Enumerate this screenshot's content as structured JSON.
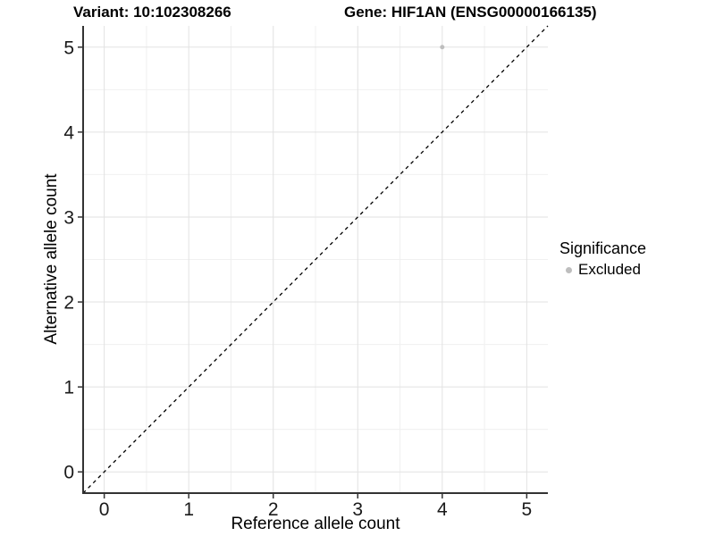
{
  "titles": {
    "variant": "Variant: 10:102308266",
    "gene": "Gene: HIF1AN (ENSG00000166135)"
  },
  "chart_data": {
    "type": "scatter",
    "xlabel": "Reference allele count",
    "ylabel": "Alternative allele count",
    "xlim": [
      -0.25,
      5.25
    ],
    "ylim": [
      -0.25,
      5.25
    ],
    "xticks": [
      0,
      1,
      2,
      3,
      4,
      5
    ],
    "yticks": [
      0,
      1,
      2,
      3,
      4,
      5
    ],
    "grid": {
      "major": true,
      "minor": true
    },
    "series": [
      {
        "name": "Excluded",
        "color": "#bebebe",
        "points": [
          {
            "x": 4,
            "y": 5
          }
        ]
      }
    ],
    "reference_line": {
      "equation": "y = x",
      "linetype": "dashed",
      "color": "#000000",
      "from": [
        -0.25,
        -0.25
      ],
      "to": [
        5.25,
        5.25
      ]
    },
    "legend": {
      "title": "Significance",
      "position": "right",
      "entries": [
        {
          "label": "Excluded",
          "color": "#bebebe",
          "marker": "circle"
        }
      ]
    },
    "colors": {
      "background": "#ffffff",
      "grid_major": "#e2e2e2",
      "grid_minor": "#f0f0f0",
      "axis_line": "#333333",
      "tick_text": "#1a1a1a",
      "point": "#bebebe"
    }
  }
}
